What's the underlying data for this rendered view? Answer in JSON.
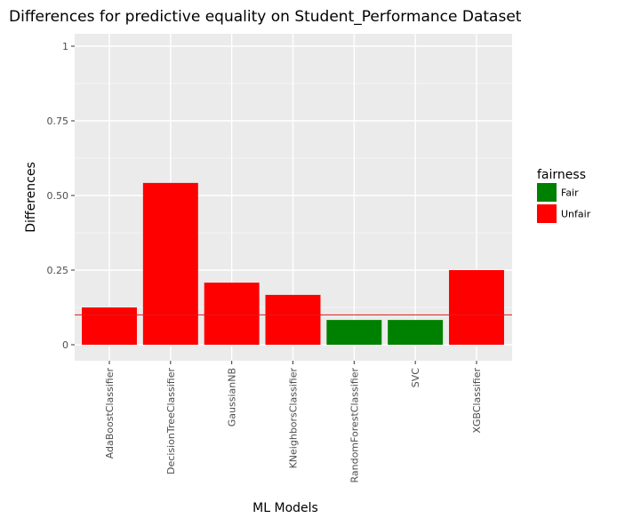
{
  "chart_data": {
    "type": "bar",
    "title": "Differences for predictive equality on Student_Performance Dataset",
    "xlabel": "ML Models",
    "ylabel": "Differences",
    "categories": [
      "AdaBoostClassifier",
      "DecisionTreeClassifier",
      "GaussianNB",
      "KNeighborsClassifier",
      "RandomForestClassifier",
      "SVC",
      "XGBClassifier"
    ],
    "values": [
      0.125,
      0.542,
      0.208,
      0.167,
      0.083,
      0.083,
      0.25
    ],
    "fairness": [
      "Unfair",
      "Unfair",
      "Unfair",
      "Unfair",
      "Fair",
      "Fair",
      "Unfair"
    ],
    "ylim": [
      0,
      1
    ],
    "yticks": [
      0,
      0.25,
      0.5,
      0.75,
      1
    ],
    "ytick_labels": [
      "0",
      "0.25",
      "0.50",
      "0.75",
      "1"
    ],
    "threshold": 0.1,
    "threshold_color": "#e41a1c",
    "grid": true,
    "legend": {
      "title": "fairness",
      "position": "right",
      "entries": [
        {
          "label": "Fair",
          "color": "#008000"
        },
        {
          "label": "Unfair",
          "color": "#ff0000"
        }
      ]
    }
  }
}
